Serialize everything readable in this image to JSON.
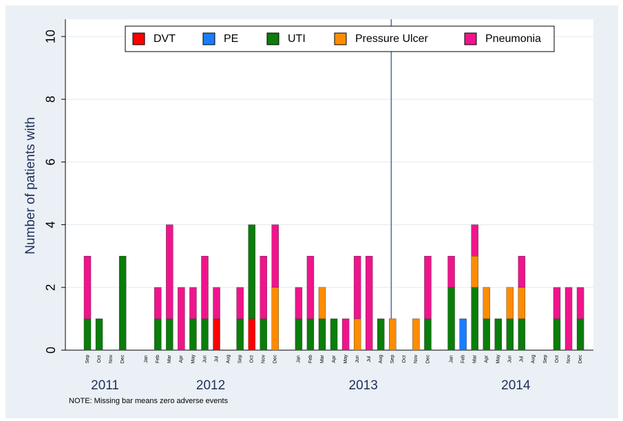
{
  "chart_data": {
    "type": "stacked_bar",
    "y_label": "Number of patients with",
    "note": "NOTE: Missing bar means zero adverse events",
    "groups": [
      {
        "label": "2011",
        "categories": [
          "Sep",
          "Oct",
          "Nov",
          "Dec"
        ]
      },
      {
        "label": "2012",
        "categories": [
          "Jan",
          "Feb",
          "Mar",
          "Apr",
          "May",
          "Jun",
          "Jul",
          "Aug",
          "Sep",
          "Oct",
          "Nov",
          "Dec"
        ]
      },
      {
        "label": "2013",
        "categories": [
          "Jan",
          "Feb",
          "Mar",
          "Apr",
          "May",
          "Jun",
          "Jul",
          "Aug",
          "Sep",
          "Oct",
          "Nov",
          "Dec"
        ]
      },
      {
        "label": "2014",
        "categories": [
          "Jan",
          "Feb",
          "Mar",
          "Apr",
          "May",
          "Jun",
          "Jul",
          "Aug",
          "Sep",
          "Oct",
          "Nov",
          "Dec"
        ]
      }
    ],
    "series": [
      {
        "name": "DVT",
        "color": "#ff0000",
        "values": [
          0,
          0,
          0,
          0,
          0,
          0,
          0,
          0,
          0,
          0,
          1,
          0,
          0,
          1,
          0,
          0,
          0,
          0,
          0,
          0,
          0,
          0,
          0,
          0,
          0,
          0,
          0,
          0,
          0,
          0,
          0,
          0,
          0,
          0,
          0,
          0,
          0,
          0,
          0,
          0
        ]
      },
      {
        "name": "PE",
        "color": "#1a7dff",
        "values": [
          0,
          0,
          0,
          0,
          0,
          0,
          0,
          0,
          0,
          0,
          0,
          0,
          0,
          0,
          0,
          0,
          0,
          0,
          0,
          0,
          0,
          0,
          0,
          0,
          0,
          0,
          0,
          0,
          0,
          1,
          0,
          0,
          0,
          0,
          0,
          0,
          0,
          0,
          0,
          0
        ]
      },
      {
        "name": "UTI",
        "color": "#0a7d0a",
        "values": [
          1,
          1,
          0,
          3,
          0,
          1,
          1,
          0,
          1,
          1,
          0,
          0,
          1,
          3,
          1,
          0,
          1,
          1,
          1,
          1,
          0,
          0,
          0,
          1,
          0,
          0,
          0,
          1,
          2,
          0,
          2,
          1,
          1,
          1,
          1,
          0,
          0,
          1,
          0,
          1
        ]
      },
      {
        "name": "Pressure Ulcer",
        "color": "#ff8c00",
        "values": [
          0,
          0,
          0,
          0,
          0,
          0,
          0,
          0,
          0,
          0,
          0,
          0,
          0,
          0,
          0,
          2,
          0,
          0,
          1,
          0,
          0,
          1,
          0,
          0,
          1,
          0,
          1,
          0,
          0,
          0,
          1,
          1,
          0,
          1,
          1,
          0,
          0,
          0,
          0,
          0
        ]
      },
      {
        "name": "Pneumonia",
        "color": "#f0148c",
        "values": [
          2,
          0,
          0,
          0,
          0,
          1,
          3,
          2,
          1,
          2,
          1,
          0,
          1,
          0,
          2,
          2,
          1,
          2,
          0,
          0,
          1,
          2,
          3,
          0,
          0,
          0,
          0,
          2,
          1,
          0,
          1,
          0,
          0,
          0,
          1,
          0,
          0,
          1,
          2,
          1
        ]
      }
    ],
    "vline": {
      "group": "2013",
      "category": "Sep"
    },
    "ylim": [
      0,
      10.55
    ],
    "yticks": [
      0,
      2,
      4,
      6,
      8,
      10
    ],
    "grid": true
  }
}
